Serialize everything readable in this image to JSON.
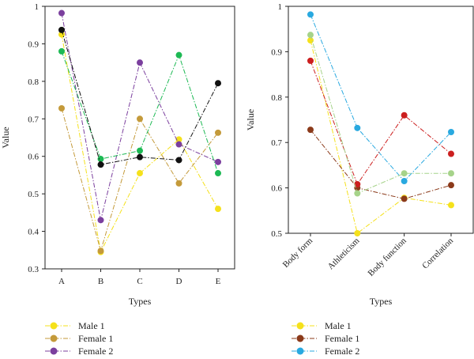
{
  "chart_data": [
    {
      "type": "line",
      "xlabel": "Types",
      "ylabel": "Value",
      "categories": [
        "A",
        "B",
        "C",
        "D",
        "E"
      ],
      "ylim": [
        0.3,
        1.0
      ],
      "yticks": [
        "0.3",
        "0.4",
        "0.5",
        "0.6",
        "0.7",
        "0.8",
        "0.9",
        "1"
      ],
      "grid": false,
      "legend_placement": "bottom-left",
      "legend": [
        "Male 1",
        "Female 1",
        "Female 2"
      ],
      "series": [
        {
          "name": "Male 1",
          "color": "#f5e11b",
          "values": [
            0.925,
            0.345,
            0.555,
            0.645,
            0.46
          ]
        },
        {
          "name": "Female 1",
          "color": "#c49a3a",
          "values": [
            0.728,
            0.348,
            0.7,
            0.528,
            0.663
          ]
        },
        {
          "name": "Female 2",
          "color": "#7b3f9e",
          "values": [
            0.982,
            0.43,
            0.85,
            0.632,
            0.585
          ]
        },
        {
          "color": "#1db954",
          "values": [
            0.88,
            0.593,
            0.615,
            0.87,
            0.555
          ]
        },
        {
          "color": "#111111",
          "values": [
            0.937,
            0.578,
            0.598,
            0.59,
            0.795
          ]
        }
      ]
    },
    {
      "type": "line",
      "xlabel": "Types",
      "ylabel": "Value",
      "categories": [
        "Body form",
        "Athleticism",
        "Body function",
        "Correlation"
      ],
      "ylim": [
        0.5,
        1.0
      ],
      "yticks": [
        "0.5",
        "0.6",
        "0.7",
        "0.8",
        "0.9",
        "1"
      ],
      "grid": false,
      "legend_placement": "bottom-left",
      "legend": [
        "Male 1",
        "Female 1",
        "Female 2"
      ],
      "series": [
        {
          "name": "Male 1",
          "color": "#f5e11b",
          "values": [
            0.925,
            0.5,
            0.578,
            0.562
          ]
        },
        {
          "name": "Female 1",
          "color": "#8b3a1a",
          "values": [
            0.728,
            0.6,
            0.576,
            0.606
          ]
        },
        {
          "name": "Female 2",
          "color": "#29a9e0",
          "values": [
            0.982,
            0.732,
            0.615,
            0.723
          ]
        },
        {
          "color": "#cc1f1f",
          "values": [
            0.88,
            0.608,
            0.76,
            0.675
          ]
        },
        {
          "color": "#a6d38a",
          "values": [
            0.937,
            0.588,
            0.632,
            0.632
          ]
        }
      ]
    }
  ]
}
